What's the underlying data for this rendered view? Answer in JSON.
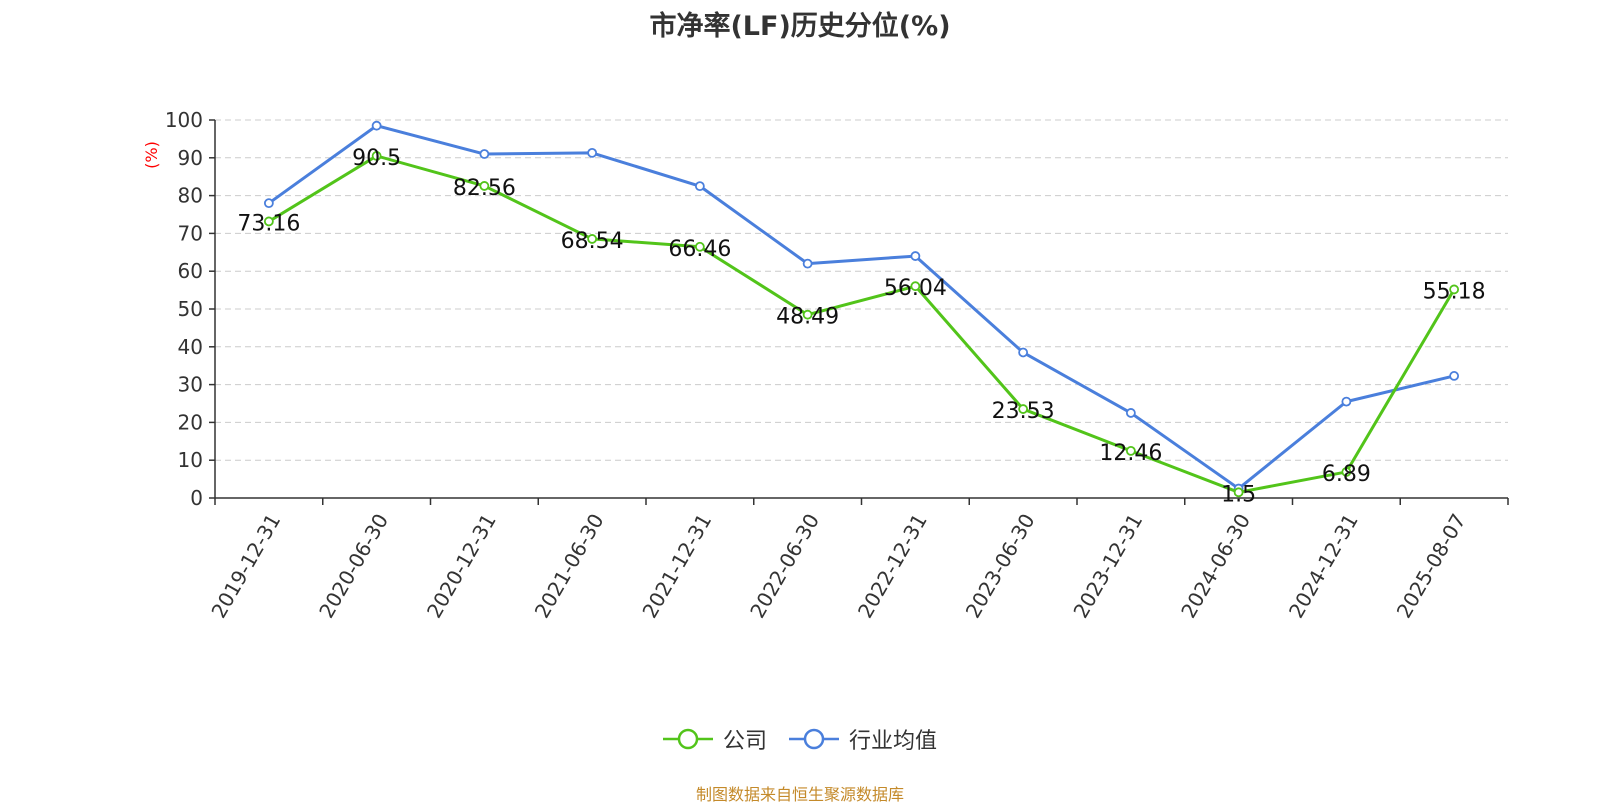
{
  "chart_data": {
    "type": "line",
    "title": "市净率(LF)历史分位(%)",
    "ylabel": "(%)",
    "ylim": [
      0,
      100
    ],
    "yticks": [
      0,
      10,
      20,
      30,
      40,
      50,
      60,
      70,
      80,
      90,
      100
    ],
    "grid": true,
    "legend_position": "bottom",
    "categories": [
      "2019-12-31",
      "2020-06-30",
      "2020-12-31",
      "2021-06-30",
      "2021-12-31",
      "2022-06-30",
      "2022-12-31",
      "2023-06-30",
      "2023-12-31",
      "2024-06-30",
      "2024-12-31",
      "2025-08-07"
    ],
    "series": [
      {
        "name": "公司",
        "color": "#52c41a",
        "show_labels": true,
        "values": [
          73.16,
          90.5,
          82.56,
          68.54,
          66.46,
          48.49,
          56.04,
          23.53,
          12.46,
          1.5,
          6.89,
          55.18
        ]
      },
      {
        "name": "行业均值",
        "color": "#4a7fdc",
        "show_labels": false,
        "values": [
          78,
          98.5,
          91,
          91.3,
          82.5,
          62,
          64,
          38.5,
          22.5,
          2.5,
          25.5,
          32.3
        ]
      }
    ]
  },
  "source_note": "制图数据来自恒生聚源数据库",
  "colors": {
    "axis_label_accent": "#ff0000",
    "grid": "#cccccc",
    "source": "#c48a2a"
  }
}
